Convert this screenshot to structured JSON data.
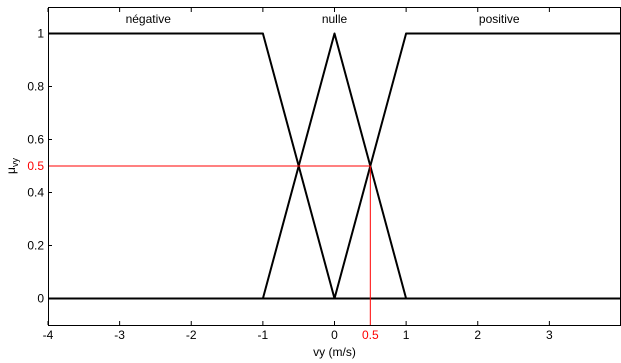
{
  "chart_data": {
    "type": "line",
    "xlabel": "vy (m/s)",
    "ylabel": "μ",
    "ylabel_sub": "vy",
    "xlim": [
      -4,
      4
    ],
    "ylim": [
      -0.1,
      1.1
    ],
    "x_ticks": [
      -4,
      -3,
      -2,
      -1,
      0,
      1,
      2,
      3
    ],
    "y_ticks": [
      0,
      0.2,
      0.4,
      0.6,
      0.8,
      1
    ],
    "x_tick_labels": [
      "-4",
      "-3",
      "-2",
      "-1",
      "0",
      "1",
      "2",
      "3"
    ],
    "y_tick_labels": [
      "0",
      "0.2",
      "0.4",
      "0.6",
      "0.8",
      "1"
    ],
    "grid": false,
    "series": [
      {
        "name": "négative",
        "x": [
          -4,
          -1,
          0,
          4
        ],
        "y": [
          1,
          1,
          0,
          0
        ],
        "label_x": -2.6
      },
      {
        "name": "nulle",
        "x": [
          -4,
          -1,
          0,
          1,
          4
        ],
        "y": [
          0,
          0,
          1,
          0,
          0
        ],
        "label_x": 0
      },
      {
        "name": "positive",
        "x": [
          -4,
          0,
          1,
          4
        ],
        "y": [
          0,
          0,
          1,
          1
        ],
        "label_x": 2.3
      }
    ],
    "annotations": {
      "color": "#ff0000",
      "x_value": 0.5,
      "y_value": 0.5,
      "x_label": "0.5",
      "y_label": "0.5"
    },
    "line_color": "#000000"
  }
}
